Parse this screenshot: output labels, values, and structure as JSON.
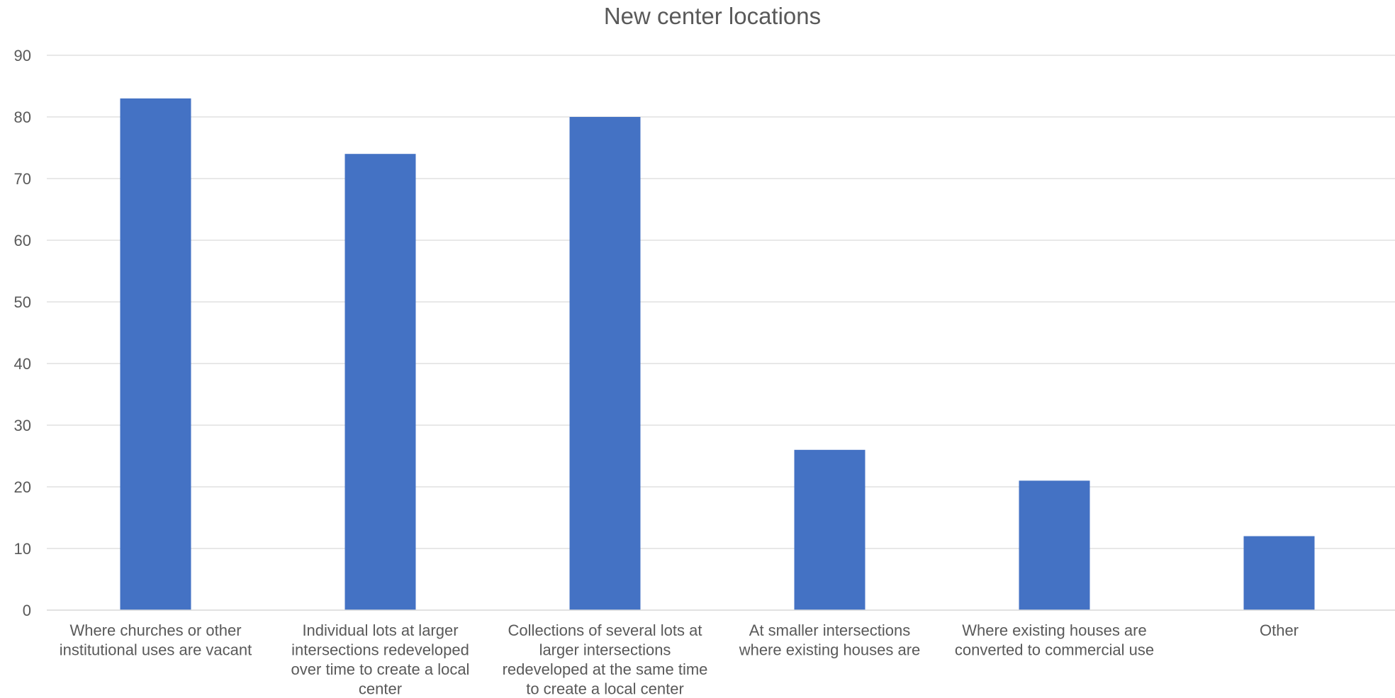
{
  "chart_data": {
    "type": "bar",
    "title": "New center locations",
    "xlabel": "",
    "ylabel": "",
    "ylim": [
      0,
      90
    ],
    "y_ticks": [
      0,
      10,
      20,
      30,
      40,
      50,
      60,
      70,
      80,
      90
    ],
    "grid": true,
    "legend": "none",
    "bar_color": "#4472c4",
    "categories": [
      "Where churches or other institutional uses are vacant",
      "Individual lots at larger intersections redeveloped over time to create a local center",
      "Collections of several lots at larger intersections redeveloped at the same time to create a local center",
      "At smaller intersections where existing houses are",
      "Where existing houses are converted to commercial use",
      "Other"
    ],
    "category_label_lines": [
      [
        "Where churches or other",
        "institutional uses are vacant"
      ],
      [
        "Individual lots at larger",
        "intersections redeveloped",
        "over time to create a local",
        "center"
      ],
      [
        "Collections of several lots at",
        "larger intersections",
        "redeveloped at the same time",
        "to create a local center"
      ],
      [
        "At smaller intersections",
        "where existing houses are"
      ],
      [
        "Where existing houses are",
        "converted to commercial use"
      ],
      [
        "Other"
      ]
    ],
    "values": [
      83,
      74,
      80,
      26,
      21,
      12
    ]
  }
}
